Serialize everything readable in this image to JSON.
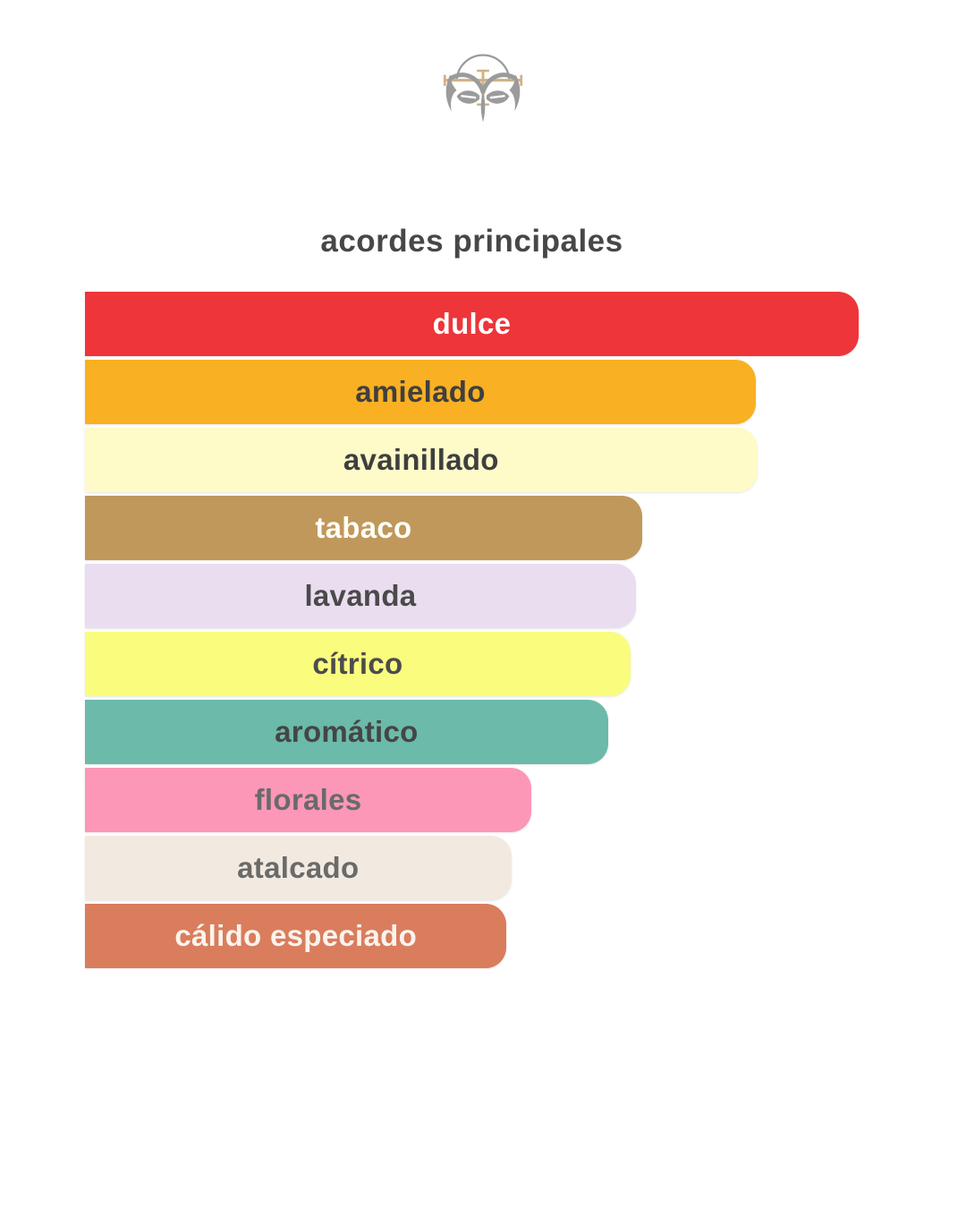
{
  "page": {
    "background": "#FFFFFF"
  },
  "brand": {
    "logo_icon": "owl-crest-logo",
    "logo_gray": "#9B9B9B",
    "logo_gold": "#D2B184"
  },
  "chart_data": {
    "type": "bar",
    "orientation": "horizontal",
    "title": "acordes principales",
    "categories": [
      "dulce",
      "amielado",
      "avainillado",
      "tabaco",
      "lavanda",
      "cítrico",
      "aromático",
      "florales",
      "atalcado",
      "cálido especiado"
    ],
    "values": [
      100,
      86.7,
      86.9,
      72.0,
      71.2,
      70.5,
      67.6,
      57.7,
      55.1,
      54.5
    ],
    "unit": "percent-of-max-bar-width",
    "bar_colors": [
      "#EE3539",
      "#F9B022",
      "#FEFBC8",
      "#C0985B",
      "#EBDDF0",
      "#FAFC7E",
      "#6BBAAA",
      "#FC97B8",
      "#F2EAE0",
      "#D97D5D"
    ],
    "label_colors": [
      "#FFFFFF",
      "#3F3F3F",
      "#3F3F3F",
      "#FFFEF8",
      "#4A4A4A",
      "#4C4C4C",
      "#454545",
      "#6A6A6A",
      "#6A6A6A",
      "#FAF3ED"
    ],
    "xlabel": "",
    "ylabel": "",
    "legend": false,
    "grid": false,
    "axes_visible": false
  }
}
